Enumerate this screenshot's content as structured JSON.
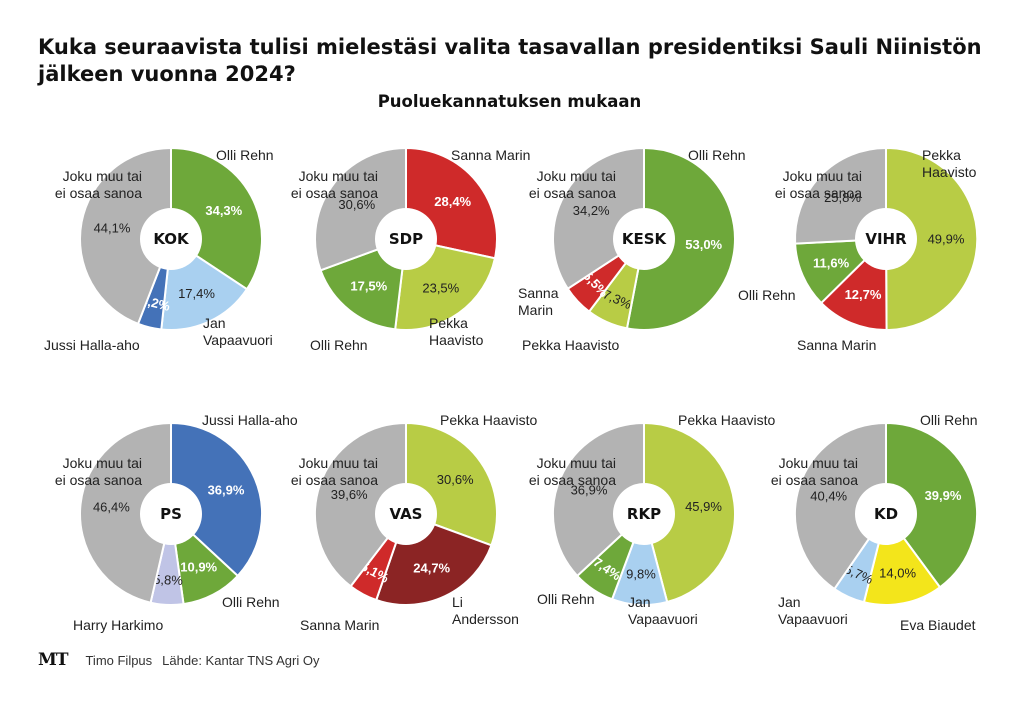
{
  "title": "Kuka seuraavista tulisi mielestäsi valita tasavallan presidentiksi Sauli Niinistön jälkeen vuonna 2024?",
  "subtitle": "Puoluekannatuksen mukaan",
  "footer": {
    "logo": "MT",
    "author": "Timo Filpus",
    "source": "Lähde: Kantar TNS Agri Oy"
  },
  "colors": {
    "Olli Rehn": "#6ea83a",
    "Jan Vapaavuori": "#a9d0f0",
    "Jussi Halla-aho": "#4472b8",
    "Sanna Marin": "#cf2a2a",
    "Pekka Haavisto": "#b8cc45",
    "Li Andersson": "#8b2424",
    "Harry Harkimo": "#c0c4e6",
    "Eva Biaudet": "#f3e51b",
    "Joku muu tai ei osaa sanoa": "#b3b3b3"
  },
  "chart_data": [
    {
      "type": "pie",
      "party": "KOK",
      "slices": [
        {
          "label": "Olli Rehn",
          "value": 34.3,
          "value_label": "34,3%"
        },
        {
          "label": "Jan Vapaavuori",
          "value": 17.4,
          "value_label": "17,4%"
        },
        {
          "label": "Jussi Halla-aho",
          "value": 4.2,
          "value_label": "4,2%"
        },
        {
          "label": "Joku muu tai ei osaa sanoa",
          "value": 44.1,
          "value_label": "44,1%"
        }
      ]
    },
    {
      "type": "pie",
      "party": "SDP",
      "slices": [
        {
          "label": "Sanna Marin",
          "value": 28.4,
          "value_label": "28,4%"
        },
        {
          "label": "Pekka Haavisto",
          "value": 23.5,
          "value_label": "23,5%"
        },
        {
          "label": "Olli Rehn",
          "value": 17.5,
          "value_label": "17,5%"
        },
        {
          "label": "Joku muu tai ei osaa sanoa",
          "value": 30.6,
          "value_label": "30,6%"
        }
      ]
    },
    {
      "type": "pie",
      "party": "KESK",
      "slices": [
        {
          "label": "Olli Rehn",
          "value": 53.0,
          "value_label": "53,0%"
        },
        {
          "label": "Pekka Haavisto",
          "value": 7.3,
          "value_label": "7,3%"
        },
        {
          "label": "Sanna Marin",
          "value": 5.5,
          "value_label": "5,5%"
        },
        {
          "label": "Joku muu tai ei osaa sanoa",
          "value": 34.2,
          "value_label": "34,2%"
        }
      ]
    },
    {
      "type": "pie",
      "party": "VIHR",
      "slices": [
        {
          "label": "Pekka Haavisto",
          "value": 49.9,
          "value_label": "49,9%"
        },
        {
          "label": "Sanna Marin",
          "value": 12.7,
          "value_label": "12,7%"
        },
        {
          "label": "Olli Rehn",
          "value": 11.6,
          "value_label": "11,6%"
        },
        {
          "label": "Joku muu tai ei osaa sanoa",
          "value": 25.8,
          "value_label": "25,8%"
        }
      ]
    },
    {
      "type": "pie",
      "party": "PS",
      "slices": [
        {
          "label": "Jussi Halla-aho",
          "value": 36.9,
          "value_label": "36,9%"
        },
        {
          "label": "Olli Rehn",
          "value": 10.9,
          "value_label": "10,9%"
        },
        {
          "label": "Harry Harkimo",
          "value": 5.8,
          "value_label": "5,8%"
        },
        {
          "label": "Joku muu tai ei osaa sanoa",
          "value": 46.4,
          "value_label": "46,4%"
        }
      ]
    },
    {
      "type": "pie",
      "party": "VAS",
      "slices": [
        {
          "label": "Pekka Haavisto",
          "value": 30.6,
          "value_label": "30,6%"
        },
        {
          "label": "Li Andersson",
          "value": 24.7,
          "value_label": "24,7%"
        },
        {
          "label": "Sanna Marin",
          "value": 5.1,
          "value_label": "5,1%"
        },
        {
          "label": "Joku muu tai ei osaa sanoa",
          "value": 39.6,
          "value_label": "39,6%"
        }
      ]
    },
    {
      "type": "pie",
      "party": "RKP",
      "slices": [
        {
          "label": "Pekka Haavisto",
          "value": 45.9,
          "value_label": "45,9%"
        },
        {
          "label": "Jan Vapaavuori",
          "value": 9.8,
          "value_label": "9,8%"
        },
        {
          "label": "Olli Rehn",
          "value": 7.4,
          "value_label": "7,4%"
        },
        {
          "label": "Joku muu tai ei osaa sanoa",
          "value": 36.9,
          "value_label": "36,9%"
        }
      ]
    },
    {
      "type": "pie",
      "party": "KD",
      "slices": [
        {
          "label": "Olli Rehn",
          "value": 39.9,
          "value_label": "39,9%"
        },
        {
          "label": "Eva Biaudet",
          "value": 14.0,
          "value_label": "14,0%"
        },
        {
          "label": "Jan Vapaavuori",
          "value": 5.7,
          "value_label": "5,7%"
        },
        {
          "label": "Joku muu tai ei osaa sanoa",
          "value": 40.4,
          "value_label": "40,4%"
        }
      ]
    }
  ]
}
